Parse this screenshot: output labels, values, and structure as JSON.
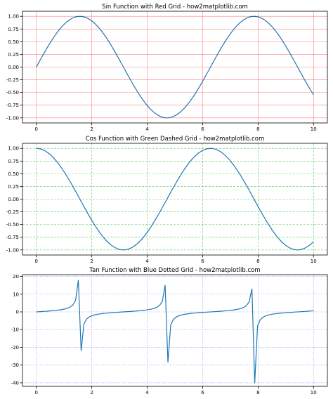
{
  "chart_data": [
    {
      "type": "line",
      "title": "Sin Function with Red Grid - how2matplotlib.com",
      "function": "sin",
      "x_range": [
        0,
        10
      ],
      "sample_count": 100,
      "xlim": [
        -0.5,
        10.5
      ],
      "ylim": [
        -1.1,
        1.1
      ],
      "xticks": [
        0,
        2,
        4,
        6,
        8,
        10
      ],
      "yticks": [
        -1.0,
        -0.75,
        -0.5,
        -0.25,
        0.0,
        0.25,
        0.5,
        0.75,
        1.0
      ],
      "ytick_labels": [
        "-1.00",
        "-0.75",
        "-0.50",
        "-0.25",
        "0.00",
        "0.25",
        "0.50",
        "0.75",
        "1.00"
      ],
      "xtick_labels": [
        "0",
        "2",
        "4",
        "6",
        "8",
        "10"
      ],
      "grid": true,
      "grid_color": "#ff8080",
      "grid_style": "solid",
      "line_color": "#1f77b4"
    },
    {
      "type": "line",
      "title": "Cos Function with Green Dashed Grid - how2matplotlib.com",
      "function": "cos",
      "x_range": [
        0,
        10
      ],
      "sample_count": 100,
      "xlim": [
        -0.5,
        10.5
      ],
      "ylim": [
        -1.1,
        1.1
      ],
      "xticks": [
        0,
        2,
        4,
        6,
        8,
        10
      ],
      "yticks": [
        -1.0,
        -0.75,
        -0.5,
        -0.25,
        0.0,
        0.25,
        0.5,
        0.75,
        1.0
      ],
      "ytick_labels": [
        "-1.00",
        "-0.75",
        "-0.50",
        "-0.25",
        "0.00",
        "0.25",
        "0.50",
        "0.75",
        "1.00"
      ],
      "xtick_labels": [
        "0",
        "2",
        "4",
        "6",
        "8",
        "10"
      ],
      "grid": true,
      "grid_color": "#4ccf4c",
      "grid_style": "dashed",
      "line_color": "#1f77b4"
    },
    {
      "type": "line",
      "title": "Tan Function with Blue Dotted Grid - how2matplotlib.com",
      "function": "tan",
      "x_range": [
        0,
        10
      ],
      "sample_count": 100,
      "xlim": [
        -0.5,
        10.5
      ],
      "ylim": [
        -42,
        21
      ],
      "xticks": [
        0,
        2,
        4,
        6,
        8,
        10
      ],
      "yticks": [
        -40,
        -30,
        -20,
        -10,
        0,
        10,
        20
      ],
      "ytick_labels": [
        "-40",
        "-30",
        "-20",
        "-10",
        "0",
        "10",
        "20"
      ],
      "xtick_labels": [
        "0",
        "2",
        "4",
        "6",
        "8",
        "10"
      ],
      "grid": true,
      "grid_color": "#8080ff",
      "grid_style": "dotted",
      "line_color": "#1f77b4"
    }
  ]
}
